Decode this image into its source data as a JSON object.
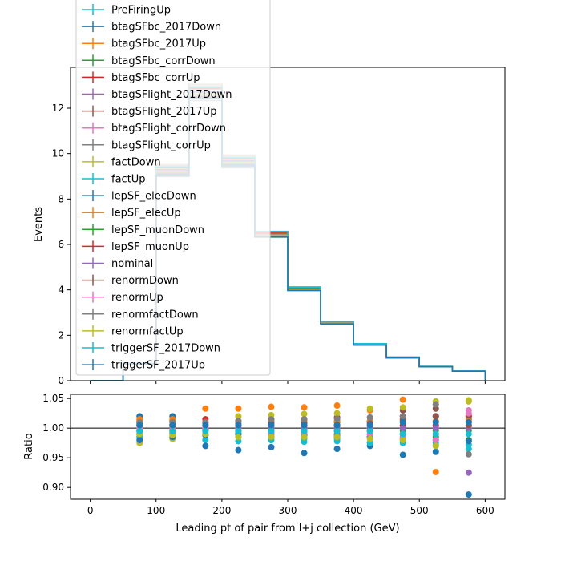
{
  "chart_data": [
    {
      "type": "line",
      "ylabel": "Events",
      "ylim": [
        0,
        13.8
      ],
      "xlim": [
        -30,
        630
      ],
      "y_ticks": [
        0,
        2,
        4,
        6,
        8,
        10,
        12
      ],
      "bin_edges": [
        0,
        50,
        100,
        150,
        200,
        250,
        300,
        350,
        400,
        450,
        500,
        550,
        600
      ],
      "nominal": [
        0,
        0.75,
        9.25,
        12.7,
        9.65,
        6.45,
        4.05,
        2.55,
        1.6,
        1.02,
        0.62,
        0.42
      ],
      "band_variation": 0.03,
      "legend_position": "upper-left",
      "legend_entries": [
        {
          "name": "PreFiringUp",
          "color": "#17becf"
        },
        {
          "name": "btagSFbc_2017Down",
          "color": "#1f77b4"
        },
        {
          "name": "btagSFbc_2017Up",
          "color": "#ff7f0e"
        },
        {
          "name": "btagSFbc_corrDown",
          "color": "#2ca02c"
        },
        {
          "name": "btagSFbc_corrUp",
          "color": "#d62728"
        },
        {
          "name": "btagSFlight_2017Down",
          "color": "#9467bd"
        },
        {
          "name": "btagSFlight_2017Up",
          "color": "#8c564b"
        },
        {
          "name": "btagSFlight_corrDown",
          "color": "#e377c2"
        },
        {
          "name": "btagSFlight_corrUp",
          "color": "#7f7f7f"
        },
        {
          "name": "factDown",
          "color": "#bcbd22"
        },
        {
          "name": "factUp",
          "color": "#17becf"
        },
        {
          "name": "lepSF_elecDown",
          "color": "#1f77b4"
        },
        {
          "name": "lepSF_elecUp",
          "color": "#ff7f0e"
        },
        {
          "name": "lepSF_muonDown",
          "color": "#2ca02c"
        },
        {
          "name": "lepSF_muonUp",
          "color": "#d62728"
        },
        {
          "name": "nominal",
          "color": "#9467bd"
        },
        {
          "name": "renormDown",
          "color": "#8c564b"
        },
        {
          "name": "renormUp",
          "color": "#e377c2"
        },
        {
          "name": "renormfactDown",
          "color": "#7f7f7f"
        },
        {
          "name": "renormfactUp",
          "color": "#bcbd22"
        },
        {
          "name": "triggerSF_2017Down",
          "color": "#17becf"
        },
        {
          "name": "triggerSF_2017Up",
          "color": "#1f77b4"
        }
      ]
    },
    {
      "type": "scatter",
      "ylabel": "Ratio",
      "xlabel": "Leading pt of pair from l+j collection (GeV)",
      "ylim": [
        0.88,
        1.057
      ],
      "xlim": [
        -30,
        630
      ],
      "x_ticks": [
        0,
        100,
        200,
        300,
        400,
        500,
        600
      ],
      "y_ticks": [
        0.9,
        0.95,
        1.0,
        1.05
      ],
      "y_tick_labels": [
        "0.90",
        "0.95",
        "1.00",
        "1.05"
      ],
      "reference_line": 1.0,
      "x": [
        75,
        125,
        175,
        225,
        275,
        325,
        375,
        425,
        475,
        525,
        575
      ],
      "series": [
        {
          "color": "#17becf",
          "values": [
            0.985,
            0.982,
            0.98,
            0.978,
            0.98,
            0.977,
            0.978,
            0.976,
            0.975,
            0.97,
            0.965
          ]
        },
        {
          "color": "#1f77b4",
          "values": [
            1.02,
            1.02,
            0.97,
            0.963,
            0.968,
            0.958,
            0.965,
            0.97,
            0.955,
            0.96,
            0.888
          ]
        },
        {
          "color": "#ff7f0e",
          "values": [
            1.015,
            1.015,
            1.033,
            1.033,
            1.036,
            1.035,
            1.038,
            1.03,
            1.048,
            0.926,
            1.02
          ]
        },
        {
          "color": "#2ca02c",
          "values": [
            0.99,
            0.992,
            0.99,
            0.99,
            0.99,
            0.99,
            0.99,
            0.985,
            0.99,
            0.985,
            0.98
          ]
        },
        {
          "color": "#d62728",
          "values": [
            1.01,
            1.012,
            1.015,
            1.012,
            1.015,
            1.015,
            1.018,
            1.012,
            1.02,
            1.02,
            1.02
          ]
        },
        {
          "color": "#9467bd",
          "values": [
            1.0,
            1.0,
            1.0,
            1.0,
            1.0,
            1.0,
            1.0,
            1.0,
            1.0,
            1.0,
            0.925
          ]
        },
        {
          "color": "#8c564b",
          "values": [
            1.005,
            1.006,
            1.008,
            1.008,
            1.01,
            1.01,
            1.01,
            1.01,
            1.03,
            1.033,
            1.015
          ]
        },
        {
          "color": "#e377c2",
          "values": [
            0.995,
            0.995,
            0.995,
            0.995,
            0.995,
            0.995,
            0.995,
            0.995,
            1.005,
            1.005,
            1.03
          ]
        },
        {
          "color": "#7f7f7f",
          "values": [
            0.99,
            0.99,
            0.99,
            0.992,
            0.99,
            0.99,
            0.988,
            0.99,
            0.99,
            0.99,
            0.956
          ]
        },
        {
          "color": "#bcbd22",
          "values": [
            0.975,
            0.982,
            1.0,
            1.02,
            1.022,
            1.024,
            1.025,
            1.033,
            1.035,
            1.045,
            1.047
          ]
        },
        {
          "color": "#17becf",
          "values": [
            1.008,
            1.005,
            1.0,
            0.985,
            0.98,
            0.982,
            0.982,
            0.975,
            0.978,
            0.975,
            0.972
          ]
        },
        {
          "color": "#1f77b4",
          "values": [
            0.98,
            0.985,
            0.988,
            0.99,
            0.985,
            0.988,
            0.985,
            0.985,
            0.982,
            0.98,
            0.978
          ]
        },
        {
          "color": "#ff7f0e",
          "values": [
            1.012,
            1.012,
            1.01,
            1.012,
            1.012,
            1.012,
            1.012,
            1.012,
            1.012,
            1.012,
            1.012
          ]
        },
        {
          "color": "#2ca02c",
          "values": [
            0.996,
            0.996,
            0.996,
            0.996,
            0.996,
            0.996,
            0.996,
            0.996,
            0.996,
            0.996,
            0.996
          ]
        },
        {
          "color": "#d62728",
          "values": [
            1.004,
            1.004,
            1.004,
            1.004,
            1.004,
            1.004,
            1.004,
            1.004,
            1.004,
            1.004,
            1.004
          ]
        },
        {
          "color": "#9467bd",
          "values": [
            1.0,
            1.0,
            1.0,
            1.0,
            1.0,
            1.0,
            1.0,
            1.0,
            1.0,
            1.0,
            1.0
          ]
        },
        {
          "color": "#8c564b",
          "values": [
            1.0,
            1.0,
            0.998,
            1.005,
            1.008,
            1.008,
            1.005,
            1.008,
            1.015,
            1.02,
            1.005
          ]
        },
        {
          "color": "#e377c2",
          "values": [
            1.0,
            0.998,
            1.0,
            0.995,
            0.992,
            0.992,
            0.995,
            0.99,
            0.985,
            0.98,
            1.025
          ]
        },
        {
          "color": "#7f7f7f",
          "values": [
            1.01,
            1.01,
            1.01,
            1.012,
            1.015,
            1.015,
            1.016,
            1.018,
            1.02,
            1.04,
            1.01
          ]
        },
        {
          "color": "#bcbd22",
          "values": [
            0.99,
            0.988,
            0.99,
            0.985,
            0.985,
            0.985,
            0.985,
            0.982,
            0.98,
            0.97,
            1.045
          ]
        },
        {
          "color": "#17becf",
          "values": [
            0.995,
            0.995,
            0.995,
            0.995,
            0.995,
            0.995,
            0.995,
            0.995,
            0.99,
            0.99,
            0.99
          ]
        },
        {
          "color": "#1f77b4",
          "values": [
            1.005,
            1.005,
            1.005,
            1.005,
            1.005,
            1.005,
            1.005,
            1.005,
            1.01,
            1.01,
            1.01
          ]
        }
      ]
    }
  ]
}
